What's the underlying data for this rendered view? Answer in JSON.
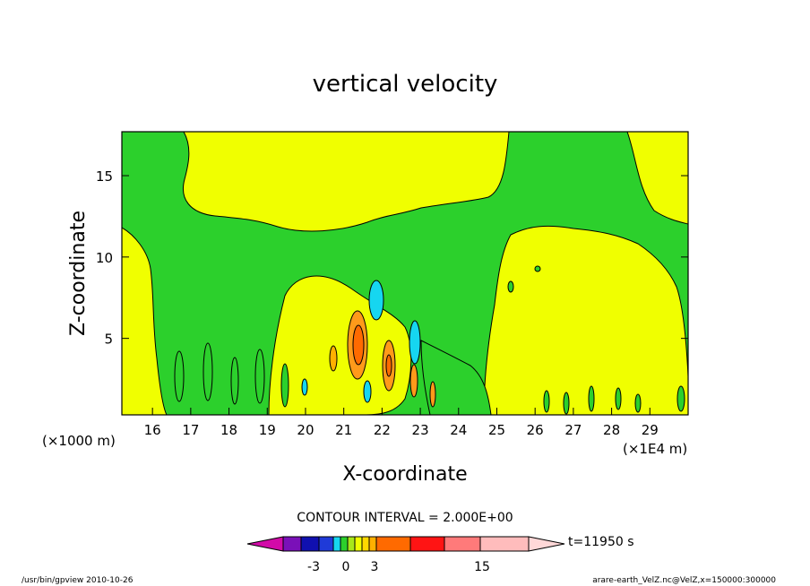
{
  "chart_data": {
    "type": "heatmap",
    "title": "vertical velocity",
    "xlabel": "X-coordinate",
    "ylabel": "Z-coordinate",
    "x_unit": "(×1000 m)",
    "x_unit_right": "(×1E4 m)",
    "x_ticks": [
      16,
      17,
      18,
      19,
      20,
      21,
      22,
      23,
      24,
      25,
      26,
      27,
      28,
      29
    ],
    "y_ticks": [
      5,
      10,
      15
    ],
    "xlim": [
      15.2,
      30.0
    ],
    "ylim": [
      0.3,
      17.7
    ],
    "contour_interval_label": "CONTOUR INTERVAL = 2.000E+00",
    "time_label": "t=11950 s",
    "colorbar": {
      "tick_labels": [
        "-3",
        "0",
        "3",
        "15"
      ],
      "colors": [
        "#d20aa8",
        "#7a10b8",
        "#1010b0",
        "#1f3ad8",
        "#16d6f0",
        "#2cd02c",
        "#a8e81a",
        "#f0ff00",
        "#ffd800",
        "#ffb000",
        "#ff6a00",
        "#ff1414",
        "#ff7a7a",
        "#ffbcbc",
        "#ffd8d8"
      ]
    },
    "regions": {
      "positive_background_color": "#f0ff00",
      "weak_negative_color": "#2cd02c",
      "strong_negative_color": "#16d6f0",
      "strong_positive_colors": [
        "#ff9a1a",
        "#ff6a00"
      ]
    }
  },
  "footer": {
    "left": "/usr/bin/gpview   2010-10-26",
    "right": "arare-earth_VelZ.nc@VelZ,x=150000:300000"
  }
}
